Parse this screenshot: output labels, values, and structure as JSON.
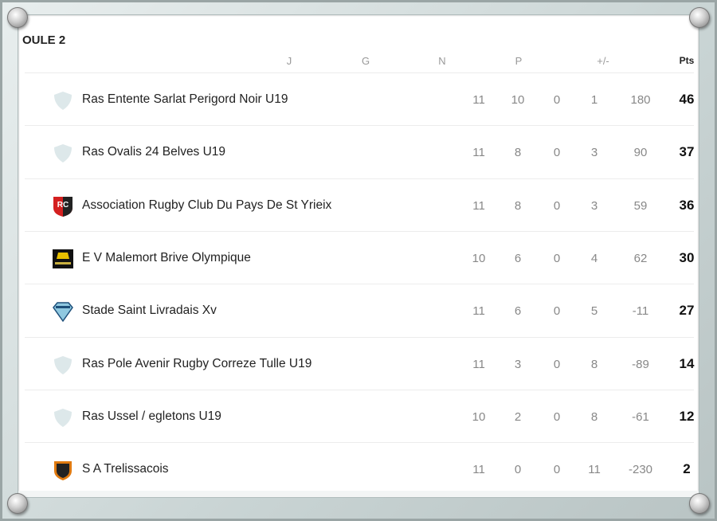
{
  "title": "OULE 2",
  "headers": {
    "j": "J",
    "g": "G",
    "n": "N",
    "p": "P",
    "diff": "+/-",
    "pts": "Pts"
  },
  "teams": [
    {
      "name": "Ras Entente Sarlat Perigord Noir U19",
      "logo": "shield-placeholder",
      "j": "11",
      "g": "10",
      "n": "0",
      "p": "1",
      "diff": "180",
      "pts": "46"
    },
    {
      "name": "Ras Ovalis 24 Belves U19",
      "logo": "shield-placeholder",
      "j": "11",
      "g": "8",
      "n": "0",
      "p": "3",
      "diff": "90",
      "pts": "37"
    },
    {
      "name": "Association Rugby Club Du Pays De St Yrieix",
      "logo": "rc-red-shield",
      "j": "11",
      "g": "8",
      "n": "0",
      "p": "3",
      "diff": "59",
      "pts": "36"
    },
    {
      "name": "E V Malemort Brive Olympique",
      "logo": "black-yellow-crest",
      "j": "10",
      "g": "6",
      "n": "0",
      "p": "4",
      "diff": "62",
      "pts": "30"
    },
    {
      "name": "Stade Saint Livradais Xv",
      "logo": "blue-diamond",
      "j": "11",
      "g": "6",
      "n": "0",
      "p": "5",
      "diff": "-11",
      "pts": "27"
    },
    {
      "name": "Ras Pole Avenir Rugby Correze Tulle U19",
      "logo": "shield-placeholder",
      "j": "11",
      "g": "3",
      "n": "0",
      "p": "8",
      "diff": "-89",
      "pts": "14"
    },
    {
      "name": "Ras Ussel / egletons U19",
      "logo": "shield-placeholder",
      "j": "10",
      "g": "2",
      "n": "0",
      "p": "8",
      "diff": "-61",
      "pts": "12"
    },
    {
      "name": "S A Trelissacois",
      "logo": "orange-black-shield",
      "j": "11",
      "g": "0",
      "n": "0",
      "p": "11",
      "diff": "-230",
      "pts": "2"
    }
  ]
}
